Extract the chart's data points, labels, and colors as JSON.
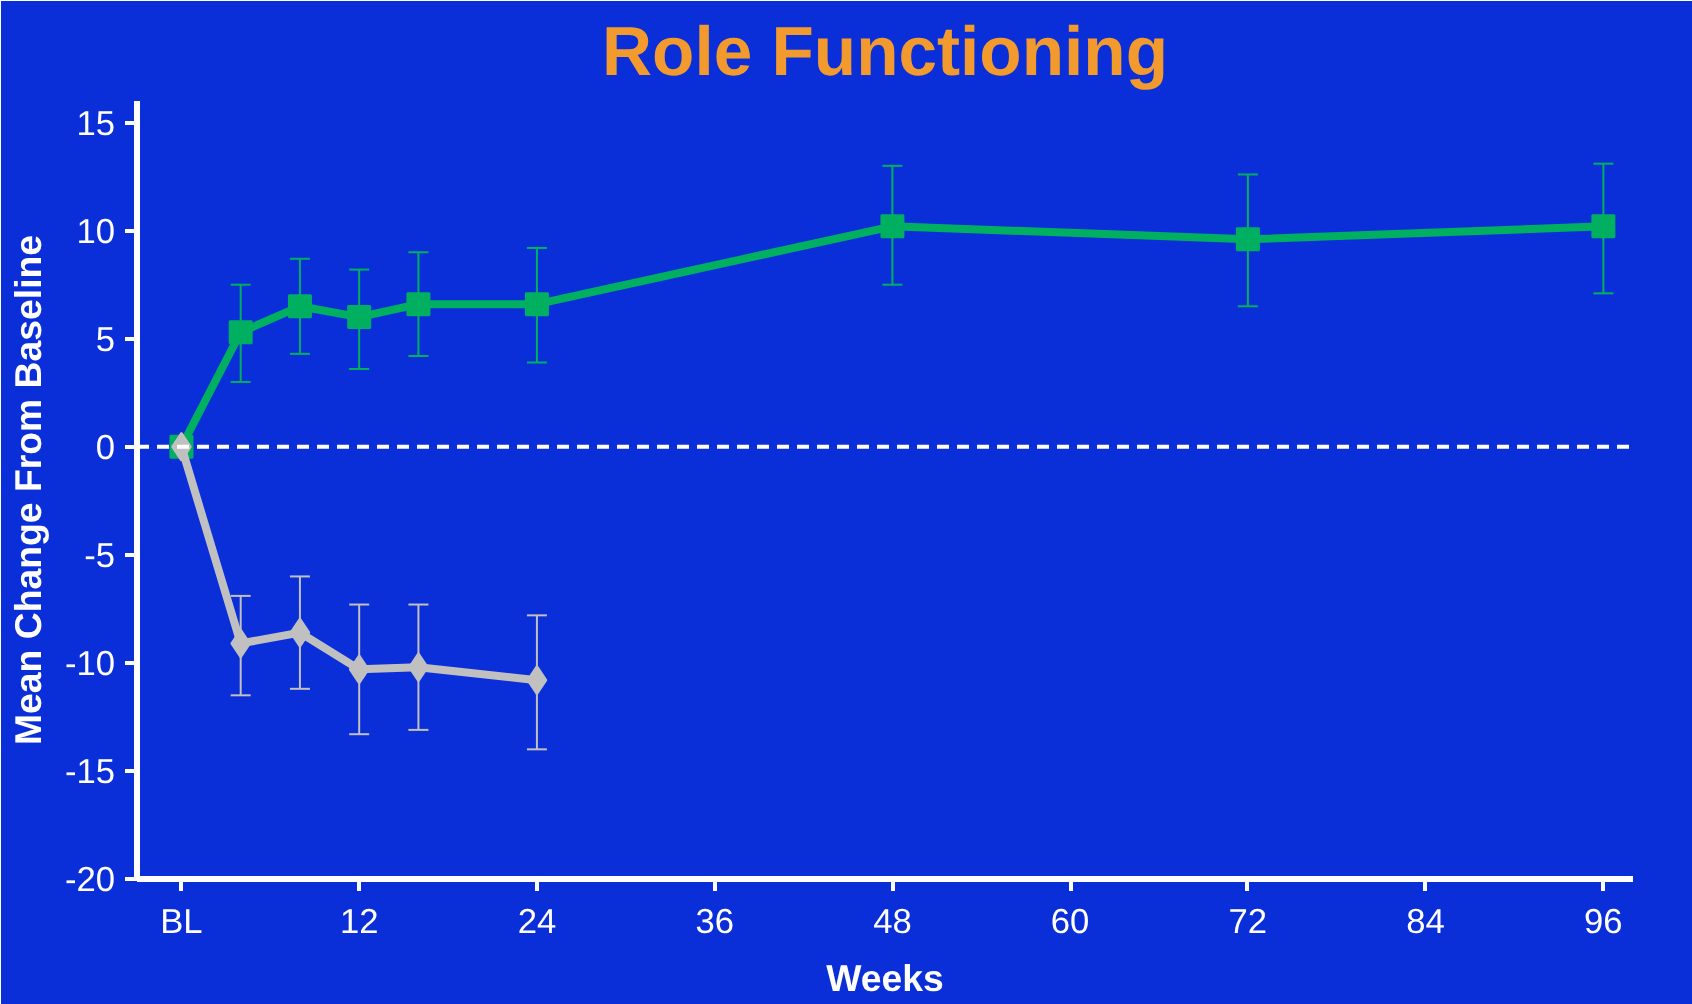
{
  "chart_data": {
    "type": "line",
    "title": "Role Functioning",
    "xlabel": "Weeks",
    "ylabel": "Mean Change From Baseline",
    "xlim": [
      -3,
      98
    ],
    "ylim": [
      -20,
      16
    ],
    "xticks": [
      {
        "value": 0,
        "label": "BL"
      },
      12,
      24,
      36,
      48,
      60,
      72,
      84,
      96
    ],
    "yticks": [
      -20,
      -15,
      -10,
      -5,
      0,
      5,
      10,
      15
    ],
    "series": [
      {
        "color": "#00b060",
        "marker": "square",
        "x": [
          0,
          4,
          8,
          12,
          16,
          24,
          48,
          72,
          96
        ],
        "values": [
          0,
          5.3,
          6.5,
          6.0,
          6.6,
          6.6,
          10.2,
          9.6,
          10.2
        ],
        "errors": [
          null,
          [
            3.0,
            7.5
          ],
          [
            4.3,
            8.7
          ],
          [
            3.6,
            8.2
          ],
          [
            4.2,
            9.0
          ],
          [
            3.9,
            9.2
          ],
          [
            7.5,
            13.0
          ],
          [
            6.5,
            12.6
          ],
          [
            7.1,
            13.1
          ]
        ]
      },
      {
        "color": "#c0c0c0",
        "marker": "diamond",
        "x": [
          0,
          4,
          8,
          12,
          16,
          24
        ],
        "values": [
          0,
          -9.1,
          -8.6,
          -10.3,
          -10.2,
          -10.8
        ],
        "errors": [
          null,
          [
            -11.5,
            -6.9
          ],
          [
            -11.2,
            -6.0
          ],
          [
            -13.3,
            -7.3
          ],
          [
            -13.1,
            -7.3
          ],
          [
            -14.0,
            -7.8
          ]
        ]
      }
    ],
    "ref_lines": [
      {
        "axis": "y",
        "value": 0,
        "color": "#ffffff",
        "line_style": "dashed"
      }
    ],
    "grid": false
  }
}
